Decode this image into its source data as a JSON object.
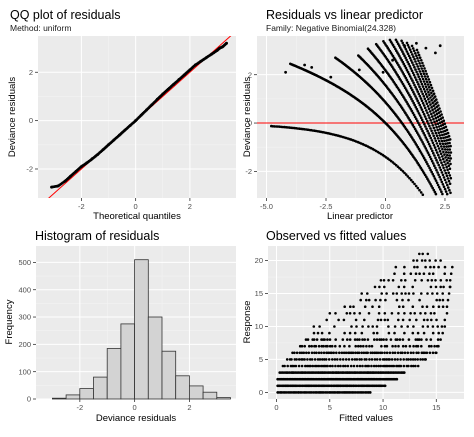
{
  "colors": {
    "panel_bg": "#ebebeb",
    "grid_major": "#ffffff",
    "grid_minor": "#f4f4f4",
    "points": "#000000",
    "reference_line": "#ff0000",
    "bar_fill": "#d3d3d3",
    "bar_stroke": "#333333"
  },
  "chart_data": [
    {
      "type": "scatter",
      "title": "QQ plot of residuals",
      "subtitle": "Method: uniform",
      "xlabel": "Theoretical quantiles",
      "ylabel": "Deviance residuals",
      "xlim": [
        -3.6,
        3.7
      ],
      "ylim": [
        -3.2,
        3.5
      ],
      "xticks": [
        -2,
        0,
        2
      ],
      "xtick_labels": [
        "-2",
        "0",
        "2"
      ],
      "yticks": [
        -2,
        0,
        2
      ],
      "ytick_labels": [
        "-2",
        "0",
        "2"
      ],
      "reference_line": {
        "intercept": 0,
        "slope": 1
      },
      "points": [
        [
          -3.1,
          -2.75
        ],
        [
          -2.85,
          -2.7
        ],
        [
          -2.6,
          -2.5
        ],
        [
          -2.4,
          -2.3
        ],
        [
          -2.2,
          -2.1
        ],
        [
          -2.0,
          -1.9
        ],
        [
          -1.8,
          -1.75
        ],
        [
          -1.6,
          -1.58
        ],
        [
          -1.4,
          -1.4
        ],
        [
          -1.2,
          -1.2
        ],
        [
          -1.0,
          -1.0
        ],
        [
          -0.8,
          -0.8
        ],
        [
          -0.6,
          -0.6
        ],
        [
          -0.4,
          -0.4
        ],
        [
          -0.2,
          -0.2
        ],
        [
          0.0,
          0.0
        ],
        [
          0.2,
          0.22
        ],
        [
          0.4,
          0.44
        ],
        [
          0.6,
          0.66
        ],
        [
          0.8,
          0.88
        ],
        [
          1.0,
          1.1
        ],
        [
          1.2,
          1.3
        ],
        [
          1.4,
          1.5
        ],
        [
          1.6,
          1.7
        ],
        [
          1.8,
          1.9
        ],
        [
          2.0,
          2.1
        ],
        [
          2.2,
          2.3
        ],
        [
          2.4,
          2.45
        ],
        [
          2.6,
          2.6
        ],
        [
          2.8,
          2.75
        ],
        [
          3.0,
          2.9
        ],
        [
          3.1,
          3.0
        ],
        [
          3.2,
          3.05
        ],
        [
          3.35,
          3.2
        ]
      ]
    },
    {
      "type": "scatter",
      "title": "Residuals vs linear predictor",
      "subtitle": "Family: Negative Binomial(24.328)",
      "xlabel": "Linear predictor",
      "ylabel": "Deviance residuals",
      "xlim": [
        -5.4,
        3.3
      ],
      "ylim": [
        -3.1,
        3.6
      ],
      "xticks": [
        -5,
        -2.5,
        0,
        2.5
      ],
      "xtick_labels": [
        "-5.0",
        "-2.5",
        "0.0",
        "2.5"
      ],
      "yticks": [
        -2,
        0,
        2
      ],
      "ytick_labels": [
        "-2",
        "0",
        "2"
      ],
      "reference_line": {
        "intercept": 0,
        "slope": 0
      },
      "count_bands": [
        0,
        1,
        2,
        3,
        4,
        5,
        6,
        7,
        8,
        9,
        10,
        11,
        12
      ],
      "extra_points": [
        [
          -4.2,
          2.1
        ],
        [
          -3.4,
          2.4
        ],
        [
          -3.1,
          2.3
        ],
        [
          -2.3,
          1.9
        ],
        [
          -1.1,
          2.2
        ],
        [
          -0.1,
          2.1
        ],
        [
          0.3,
          2.6
        ],
        [
          0.8,
          3.2
        ],
        [
          1.3,
          3.3
        ],
        [
          1.7,
          3.1
        ],
        [
          2.1,
          2.9
        ],
        [
          2.3,
          3.2
        ]
      ]
    },
    {
      "type": "bar",
      "title": "Histogram of residuals",
      "xlabel": "Deviance residuals",
      "ylabel": "Frequency",
      "xlim": [
        -3.6,
        3.7
      ],
      "ylim": [
        0,
        560
      ],
      "xticks": [
        -2,
        0,
        2
      ],
      "xtick_labels": [
        "-2",
        "0",
        "2"
      ],
      "yticks": [
        0,
        100,
        200,
        300,
        400,
        500
      ],
      "ytick_labels": [
        "0",
        "100",
        "200",
        "300",
        "400",
        "500"
      ],
      "bins": [
        {
          "x0": -3.0,
          "x1": -2.5,
          "value": 3
        },
        {
          "x0": -2.5,
          "x1": -2.0,
          "value": 15
        },
        {
          "x0": -2.0,
          "x1": -1.5,
          "value": 38
        },
        {
          "x0": -1.5,
          "x1": -1.0,
          "value": 80
        },
        {
          "x0": -1.0,
          "x1": -0.5,
          "value": 185
        },
        {
          "x0": -0.5,
          "x1": 0.0,
          "value": 275
        },
        {
          "x0": 0.0,
          "x1": 0.5,
          "value": 510
        },
        {
          "x0": 0.5,
          "x1": 1.0,
          "value": 300
        },
        {
          "x0": 1.0,
          "x1": 1.5,
          "value": 175
        },
        {
          "x0": 1.5,
          "x1": 2.0,
          "value": 85
        },
        {
          "x0": 2.0,
          "x1": 2.5,
          "value": 48
        },
        {
          "x0": 2.5,
          "x1": 3.0,
          "value": 25
        },
        {
          "x0": 3.0,
          "x1": 3.5,
          "value": 5
        }
      ]
    },
    {
      "type": "scatter",
      "title": "Observed vs fitted values",
      "xlabel": "Fitted values",
      "ylabel": "Response",
      "xlim": [
        -0.8,
        17.6
      ],
      "ylim": [
        -1.0,
        22.2
      ],
      "xticks": [
        0,
        5,
        10,
        15
      ],
      "xtick_labels": [
        "0",
        "5",
        "10",
        "15"
      ],
      "yticks": [
        0,
        5,
        10,
        15,
        20
      ],
      "ytick_labels": [
        "0",
        "5",
        "10",
        "15",
        "20"
      ],
      "x_range_by_response": [
        [
          0.1,
          8.8
        ],
        [
          0.1,
          10.2
        ],
        [
          0.1,
          11.3
        ],
        [
          0.3,
          12.0
        ],
        [
          0.6,
          13.3
        ],
        [
          1.0,
          14.0
        ],
        [
          1.5,
          15.0
        ],
        [
          2.0,
          15.2
        ],
        [
          2.6,
          15.4
        ],
        [
          3.1,
          15.6
        ],
        [
          3.5,
          15.8
        ],
        [
          4.2,
          15.8
        ],
        [
          5.0,
          16.0
        ],
        [
          6.0,
          16.0
        ],
        [
          7.0,
          16.1
        ],
        [
          8.0,
          16.2
        ],
        [
          8.8,
          16.3
        ],
        [
          9.8,
          16.3
        ],
        [
          10.5,
          16.4
        ],
        [
          11.2,
          16.5
        ],
        [
          12.3,
          15.4
        ],
        [
          13.4,
          14.2
        ]
      ]
    }
  ]
}
